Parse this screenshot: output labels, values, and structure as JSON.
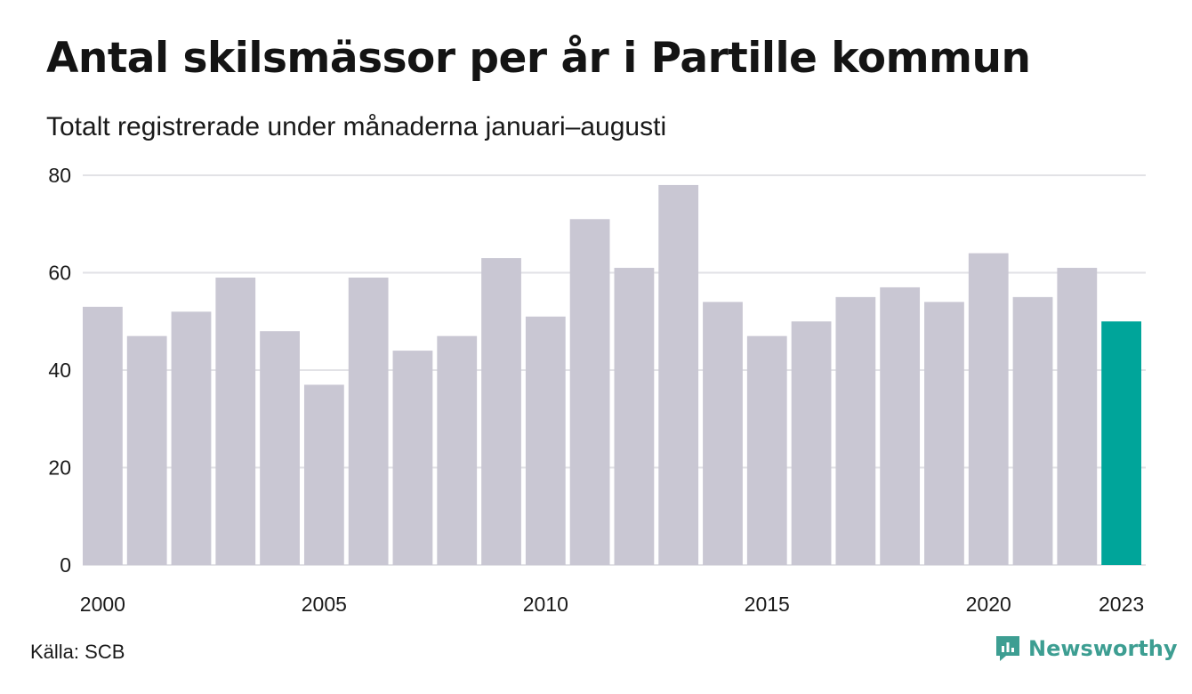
{
  "title": "Antal skilsmässor per år i Partille kommun",
  "subtitle": "Totalt registrerade under månaderna januari–augusti",
  "source": "Källa: SCB",
  "brand": {
    "name": "Newsworthy",
    "icon": "newsworthy-logo-icon",
    "color": "#3d9e92"
  },
  "chart_data": {
    "type": "bar",
    "categories": [
      "2000",
      "2001",
      "2002",
      "2003",
      "2004",
      "2005",
      "2006",
      "2007",
      "2008",
      "2009",
      "2010",
      "2011",
      "2012",
      "2013",
      "2014",
      "2015",
      "2016",
      "2017",
      "2018",
      "2019",
      "2020",
      "2021",
      "2022",
      "2023"
    ],
    "values": [
      53,
      47,
      52,
      59,
      48,
      37,
      59,
      44,
      47,
      63,
      51,
      71,
      61,
      78,
      54,
      47,
      50,
      55,
      57,
      54,
      64,
      55,
      61,
      50
    ],
    "x_tick_labels": [
      "2000",
      "2005",
      "2010",
      "2015",
      "2020",
      "2023"
    ],
    "y_ticks": [
      0,
      20,
      40,
      60,
      80
    ],
    "ylim": [
      0,
      80
    ],
    "grid": true,
    "colors": {
      "default": "#c9c7d3",
      "highlight": "#00a59a",
      "grid": "#e2e2e6"
    },
    "highlight_category": "2023"
  }
}
